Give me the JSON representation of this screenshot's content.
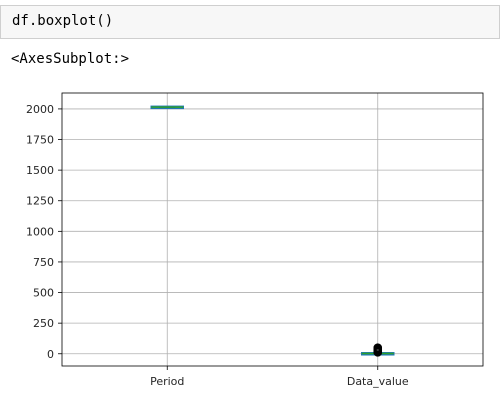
{
  "notebook": {
    "code": "df.boxplot()",
    "output_repr": "<AxesSubplot:>"
  },
  "chart_data": {
    "type": "box",
    "categories": [
      "Period",
      "Data_value"
    ],
    "ylim": [
      -100,
      2130
    ],
    "yticks": [
      0,
      250,
      500,
      750,
      1000,
      1250,
      1500,
      1750,
      2000
    ],
    "grid": true,
    "boxes": [
      {
        "name": "Period",
        "whislo": 2011,
        "q1": 2013,
        "med": 2015,
        "q3": 2017,
        "whishi": 2019,
        "fliers": []
      },
      {
        "name": "Data_value",
        "whislo": 0,
        "q1": 1,
        "med": 2,
        "q3": 4,
        "whishi": 8,
        "fliers": [
          12,
          15,
          18,
          22,
          26,
          30,
          34,
          38,
          42,
          46,
          50
        ]
      }
    ],
    "colors": {
      "box": "#1f77b4",
      "median": "#2ca02c",
      "grid": "#b0b0b0",
      "flier": "#000000"
    }
  }
}
